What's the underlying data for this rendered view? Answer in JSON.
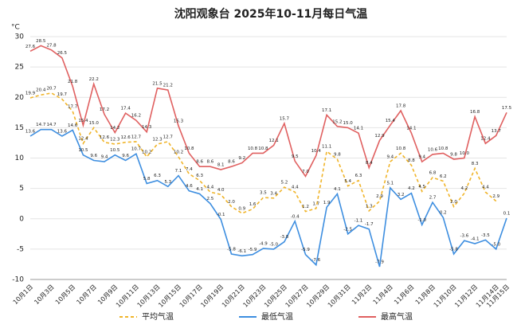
{
  "chart_data": {
    "type": "line",
    "title": "沈阳观象台 2025年10-11月每日气温",
    "y_label": "°C",
    "categories": [
      "10月1日",
      null,
      "10月3日",
      null,
      "10月5日",
      null,
      "10月7日",
      null,
      "10月9日",
      null,
      "10月11日",
      null,
      "10月13日",
      null,
      "10月15日",
      null,
      "10月17日",
      null,
      "10月19日",
      null,
      "10月21日",
      null,
      "10月23日",
      null,
      "10月25日",
      null,
      "10月27日",
      null,
      "10月29日",
      null,
      "10月31日",
      null,
      "11月2日",
      null,
      "11月4日",
      null,
      "11月6日",
      null,
      "11月8日",
      null,
      "11月10日",
      null,
      "11月12日",
      null,
      "11月14日",
      "11月15日"
    ],
    "ylim": [
      -10,
      30
    ],
    "yticks": [
      -10,
      -5,
      0,
      5,
      10,
      15,
      20,
      25,
      30
    ],
    "grid": true,
    "legend": "bottom",
    "series": [
      {
        "name": "平均气温",
        "color": "#f0b429",
        "dashed": true,
        "values": [
          19.9,
          20.4,
          20.7,
          19.7,
          17.7,
          12.4,
          15.0,
          12.6,
          12.3,
          12.6,
          12.7,
          10.2,
          12.3,
          12.7,
          10.2,
          7.4,
          6.3,
          4.4,
          4.0,
          2.0,
          0.9,
          1.6,
          3.5,
          3.4,
          5.2,
          4.4,
          1.2,
          1.7,
          11.1,
          9.8,
          5.4,
          6.3,
          1.3,
          2.9,
          9.4,
          10.8,
          8.8,
          4.5,
          6.8,
          6.2,
          2.0,
          4.2,
          8.3,
          4.4,
          2.9,
          null
        ],
        "value_labels": [
          "19.9",
          "20.4",
          "20.7",
          "19.7",
          "17.7",
          "12.4",
          "15.0",
          "12.6",
          "12.3",
          "12.6",
          "12.7",
          "10.2",
          "12.3",
          "12.7",
          "10.2",
          "7.4",
          "6.3",
          "4.4",
          "4.0",
          "2.0",
          "0.9",
          "1.6",
          "3.5",
          "3.4",
          "5.2",
          "4.4",
          "1.2",
          "1.7",
          "11.1",
          "9.8",
          "5.4",
          "6.3",
          "1.3",
          "2.9",
          "9.4",
          "10.8",
          "8.8",
          "4.5",
          "6.8",
          "6.2",
          "2.0",
          "4.2",
          "8.3",
          "4.4",
          "2.9",
          null
        ]
      },
      {
        "name": "最低气温",
        "color": "#3d8ee0",
        "dashed": false,
        "values": [
          13.6,
          14.7,
          14.7,
          13.6,
          14.6,
          10.5,
          9.6,
          9.4,
          10.5,
          9.6,
          10.7,
          5.8,
          6.3,
          5.3,
          7.1,
          4.6,
          4.1,
          2.5,
          -0.1,
          -5.8,
          -6.1,
          -5.9,
          -4.9,
          -5.0,
          -3.8,
          -0.4,
          -5.9,
          -7.6,
          1.9,
          4.1,
          -2.5,
          -1.1,
          -1.7,
          -7.9,
          5.1,
          3.2,
          4.2,
          -1.0,
          2.7,
          0.2,
          -5.8,
          -3.6,
          -4.1,
          -3.5,
          -5.0,
          0.1
        ],
        "value_labels": [
          "13.6",
          "14.7",
          "14.7",
          "13.6",
          "14.6",
          "10.5",
          "9.6",
          "9.4",
          "10.5",
          "9.6",
          "10.7",
          "5.8",
          "6.3",
          "5.3",
          "7.1",
          "4.6",
          "4.1",
          "2.5",
          "-0.1",
          "-5.8",
          "-6.1",
          "-5.9",
          "-4.9",
          "-5.0",
          "-3.8",
          "-0.4",
          "-5.9",
          "-7.6",
          "1.9",
          "4.1",
          "-2.5",
          "-1.1",
          "-1.7",
          "-7.9",
          "5.1",
          "3.2",
          "4.2",
          "-1.0",
          "2.7",
          "0.2",
          "-5.8",
          "-3.6",
          "-4.1",
          "-3.5",
          "-5.0",
          "0.1"
        ]
      },
      {
        "name": "最高气温",
        "color": "#e06060",
        "dashed": false,
        "values": [
          27.6,
          28.5,
          27.8,
          26.5,
          21.8,
          15.4,
          22.2,
          17.2,
          14.2,
          17.4,
          16.2,
          14.3,
          21.5,
          21.2,
          15.3,
          10.8,
          8.6,
          8.6,
          8.1,
          8.6,
          9.2,
          10.8,
          10.8,
          12.1,
          15.7,
          9.5,
          7.0,
          10.4,
          17.1,
          15.2,
          15.0,
          14.1,
          8.4,
          12.9,
          15.4,
          17.8,
          14.1,
          9.4,
          10.6,
          10.8,
          9.8,
          10.0,
          16.8,
          12.4,
          13.7,
          17.5
        ],
        "value_labels": [
          "27.6",
          "28.5",
          "27.8",
          "26.5",
          "21.8",
          "15.4",
          "22.2",
          "17.2",
          "14.2",
          "17.4",
          "16.2",
          "14.3",
          "21.5",
          "21.2",
          "15.3",
          "10.8",
          "8.6",
          "8.6",
          "8.1",
          "8.6",
          "9.2",
          "10.8",
          "10.8",
          "12.1",
          "15.7",
          "9.5",
          "7.0",
          "10.4",
          "17.1",
          "15.2",
          "15.0",
          "14.1",
          "8.4",
          "12.9",
          "15.4",
          "17.8",
          "14.1",
          "9.4",
          "10.6",
          "10.8",
          "9.8",
          "10.0",
          "16.8",
          "12.4",
          "13.7",
          "17.5"
        ]
      }
    ]
  }
}
